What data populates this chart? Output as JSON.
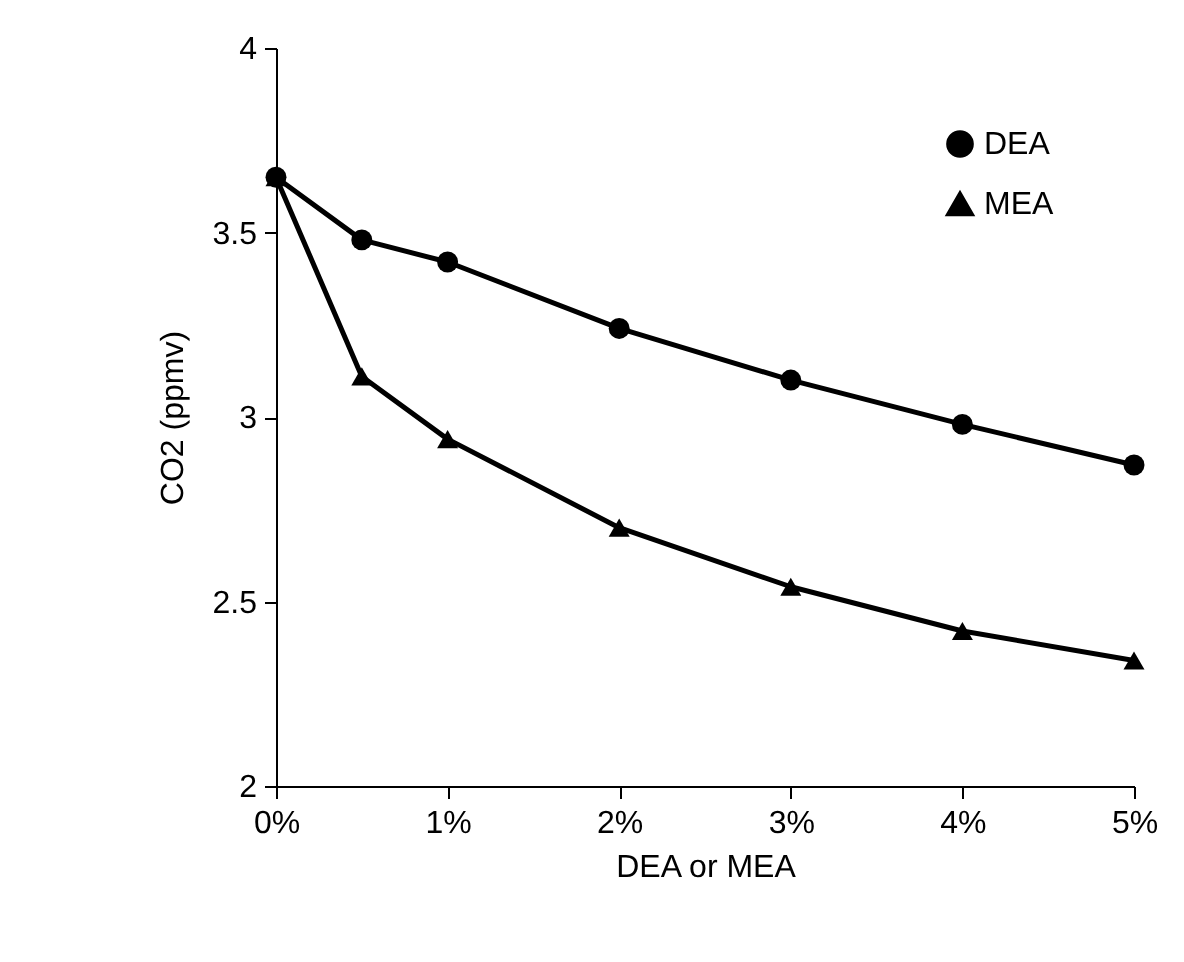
{
  "chart_data": {
    "type": "line",
    "xlabel": "DEA or MEA",
    "ylabel": "CO2 (ppmv)",
    "x": [
      0,
      0.5,
      1,
      2,
      3,
      4,
      5
    ],
    "series": [
      {
        "name": "DEA",
        "color": "#000000",
        "marker": "circle",
        "values": [
          3.65,
          3.48,
          3.42,
          3.24,
          3.1,
          2.98,
          2.87
        ]
      },
      {
        "name": "MEA",
        "color": "#000000",
        "marker": "triangle",
        "values": [
          3.65,
          3.11,
          2.94,
          2.7,
          2.54,
          2.42,
          2.34
        ]
      }
    ],
    "xlim": [
      0,
      5
    ],
    "xticks": [
      {
        "value": 0,
        "label": "0%"
      },
      {
        "value": 1,
        "label": "1%"
      },
      {
        "value": 2,
        "label": "2%"
      },
      {
        "value": 3,
        "label": "3%"
      },
      {
        "value": 4,
        "label": "4%"
      },
      {
        "value": 5,
        "label": "5%"
      }
    ],
    "ylim": [
      2,
      4
    ],
    "yticks": [
      2,
      2.5,
      3,
      3.5,
      4
    ],
    "grid": false,
    "legend": "top right",
    "line_style": "solid"
  }
}
